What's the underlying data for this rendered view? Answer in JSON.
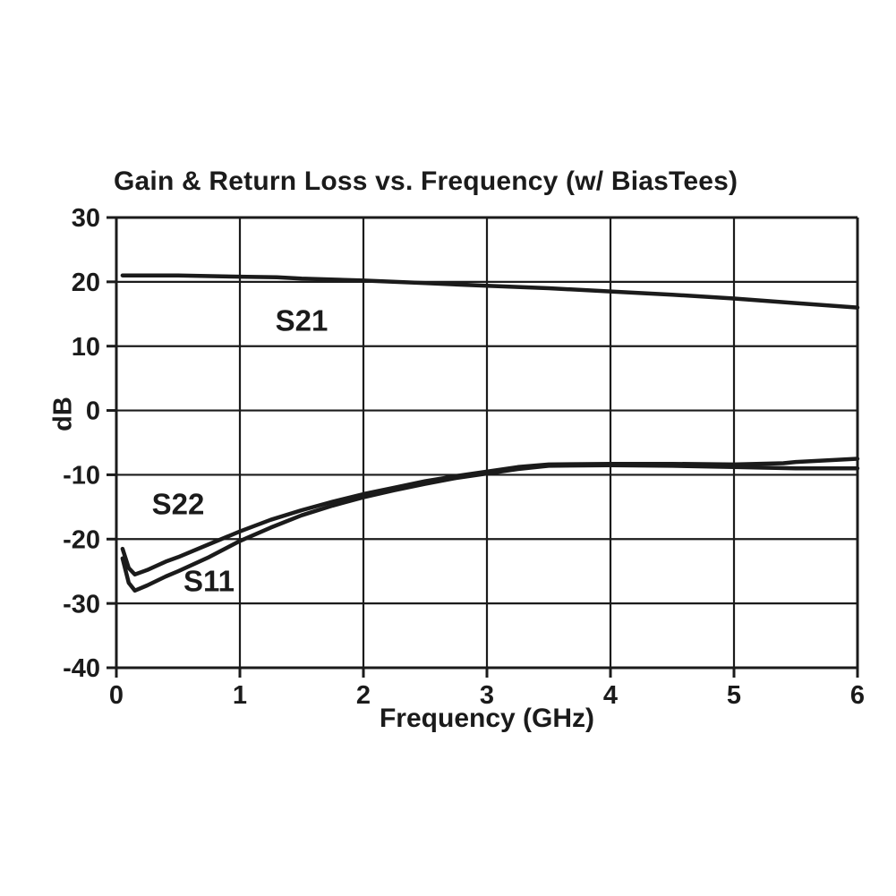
{
  "page": {
    "background": "#ffffff",
    "ink_color": "#1b1b1b"
  },
  "chart_data": {
    "type": "line",
    "title": "Gain & Return Loss vs. Frequency (w/ BiasTees)",
    "xlabel": "Frequency (GHz)",
    "ylabel": "dB",
    "xlim": [
      0,
      6
    ],
    "ylim": [
      -40,
      30
    ],
    "x_ticks": [
      0,
      1,
      2,
      3,
      4,
      5,
      6
    ],
    "y_ticks": [
      30,
      20,
      10,
      0,
      -10,
      -20,
      -30,
      -40
    ],
    "grid": true,
    "legend": "inline-labels",
    "line_color": "#1b1b1b",
    "series": [
      {
        "name": "S21",
        "label": "S21",
        "label_x": 1.5,
        "label_y": 14,
        "x": [
          0.05,
          0.5,
          1.0,
          1.3,
          1.5,
          2.0,
          2.5,
          3.0,
          3.5,
          4.0,
          4.5,
          5.0,
          5.5,
          6.0
        ],
        "y": [
          21.0,
          21.0,
          20.8,
          20.7,
          20.5,
          20.2,
          19.8,
          19.4,
          19.0,
          18.5,
          18.0,
          17.4,
          16.7,
          16.0
        ]
      },
      {
        "name": "S22",
        "label": "S22",
        "label_x": 0.5,
        "label_y": -14.5,
        "x": [
          0.05,
          0.1,
          0.15,
          0.25,
          0.4,
          0.5,
          0.75,
          1.0,
          1.25,
          1.5,
          1.75,
          2.0,
          2.25,
          2.5,
          2.75,
          3.0,
          3.25,
          3.5,
          4.0,
          4.5,
          5.0,
          5.4,
          5.5,
          6.0
        ],
        "y": [
          -21.5,
          -24.5,
          -25.5,
          -24.8,
          -23.5,
          -22.8,
          -20.8,
          -18.8,
          -17.0,
          -15.5,
          -14.2,
          -13.0,
          -12.0,
          -11.0,
          -10.2,
          -9.5,
          -8.8,
          -8.4,
          -8.3,
          -8.3,
          -8.4,
          -8.2,
          -8.0,
          -7.5
        ]
      },
      {
        "name": "S11",
        "label": "S11",
        "label_x": 0.75,
        "label_y": -26.5,
        "x": [
          0.05,
          0.1,
          0.15,
          0.25,
          0.4,
          0.5,
          0.75,
          1.0,
          1.25,
          1.5,
          1.75,
          2.0,
          2.25,
          2.5,
          2.75,
          3.0,
          3.25,
          3.5,
          4.0,
          4.5,
          5.0,
          5.5,
          6.0
        ],
        "y": [
          -23.0,
          -26.8,
          -28.0,
          -27.2,
          -25.8,
          -25.0,
          -22.8,
          -20.3,
          -18.2,
          -16.3,
          -14.8,
          -13.5,
          -12.4,
          -11.4,
          -10.5,
          -9.8,
          -9.1,
          -8.6,
          -8.5,
          -8.6,
          -8.8,
          -9.0,
          -9.0
        ]
      }
    ]
  }
}
